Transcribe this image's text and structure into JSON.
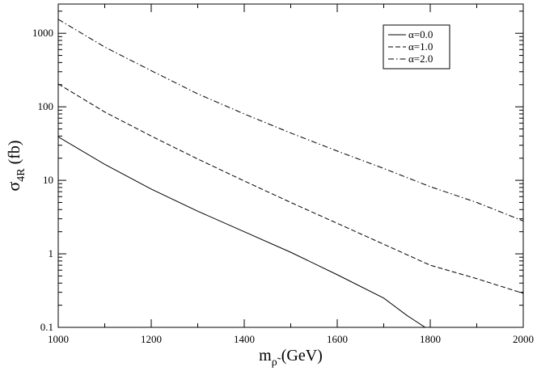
{
  "chart_data": {
    "type": "line",
    "xlabel": {
      "base": "m",
      "subscript": "ρ̃",
      "unit": "(GeV)"
    },
    "ylabel": {
      "base": "σ",
      "subscript": "4R",
      "unit": "(fb)"
    },
    "xlim": [
      1000,
      2000
    ],
    "ylim": [
      0.1,
      2500
    ],
    "yscale": "log",
    "grid": false,
    "legend_position": "top-right",
    "x_ticks": [
      1000,
      1200,
      1400,
      1600,
      1800,
      2000
    ],
    "x_tick_labels": [
      "1000",
      "1200",
      "1400",
      "1600",
      "1800",
      "2000"
    ],
    "y_ticks": [
      0.1,
      1,
      10,
      100,
      1000
    ],
    "y_tick_labels": [
      "0.1",
      "1",
      "10",
      "100",
      "1000"
    ],
    "series": [
      {
        "name": "α=0.0",
        "dash": "solid",
        "x": [
          1000,
          1100,
          1200,
          1300,
          1400,
          1500,
          1600,
          1700,
          1750,
          1800
        ],
        "y": [
          39,
          16.5,
          7.6,
          3.8,
          2.0,
          1.05,
          0.52,
          0.25,
          0.145,
          0.09
        ]
      },
      {
        "name": "α=1.0",
        "dash": "dashed",
        "x": [
          1000,
          1100,
          1200,
          1300,
          1400,
          1500,
          1600,
          1700,
          1800,
          1900,
          2000
        ],
        "y": [
          205,
          85,
          40,
          19.5,
          9.8,
          5.0,
          2.6,
          1.35,
          0.7,
          0.46,
          0.29
        ]
      },
      {
        "name": "α=2.0",
        "dash": "dashdot",
        "x": [
          1000,
          1100,
          1200,
          1300,
          1400,
          1500,
          1600,
          1700,
          1800,
          1900,
          2000
        ],
        "y": [
          1550,
          650,
          310,
          150,
          80,
          44,
          25,
          14.5,
          8.2,
          5.0,
          2.8
        ]
      }
    ]
  }
}
